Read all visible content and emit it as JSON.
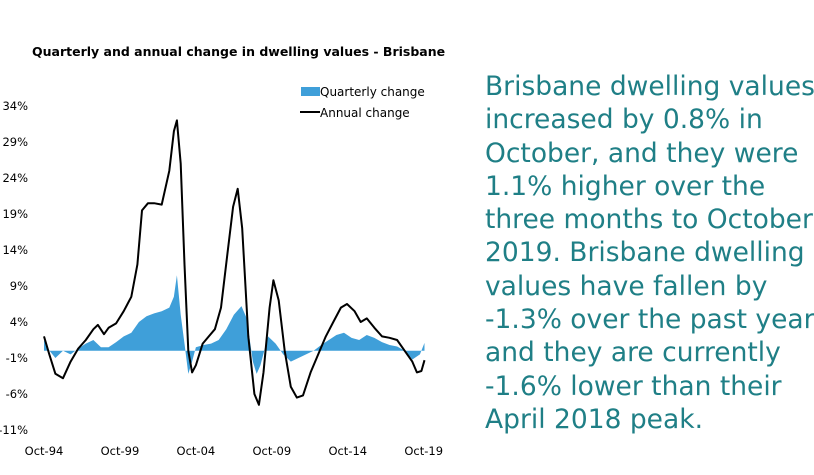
{
  "chart_data": {
    "type": "bar+line",
    "title": "Quarterly and annual change in dwelling values - Brisbane",
    "xlabel": "",
    "ylabel": "",
    "ylim": [
      -11,
      34
    ],
    "yticks": [
      "34%",
      "29%",
      "24%",
      "19%",
      "14%",
      "9%",
      "4%",
      "-1%",
      "-6%",
      "-11%"
    ],
    "ytick_values": [
      34,
      29,
      24,
      19,
      14,
      9,
      4,
      -1,
      -6,
      -11
    ],
    "xlim": [
      1994.75,
      2019.9
    ],
    "xticks": [
      "Oct-94",
      "Oct-99",
      "Oct-04",
      "Oct-09",
      "Oct-14",
      "Oct-19"
    ],
    "xtick_values": [
      1994.75,
      1999.75,
      2004.75,
      2009.75,
      2014.75,
      2019.75
    ],
    "legend_position": "top-right",
    "series": [
      {
        "name": "Quarterly change",
        "kind": "bar",
        "color": "#3f9fd9",
        "points": [
          [
            1994.75,
            1.5
          ],
          [
            1995.0,
            0.3
          ],
          [
            1995.5,
            -1.0
          ],
          [
            1996.0,
            0.0
          ],
          [
            1996.5,
            -0.5
          ],
          [
            1997.0,
            0.3
          ],
          [
            1997.5,
            1.0
          ],
          [
            1998.0,
            1.5
          ],
          [
            1998.5,
            0.5
          ],
          [
            1999.0,
            0.5
          ],
          [
            1999.5,
            1.2
          ],
          [
            2000.0,
            2.0
          ],
          [
            2000.5,
            2.5
          ],
          [
            2001.0,
            4.0
          ],
          [
            2001.5,
            4.8
          ],
          [
            2002.0,
            5.2
          ],
          [
            2002.5,
            5.5
          ],
          [
            2003.0,
            6.0
          ],
          [
            2003.3,
            7.5
          ],
          [
            2003.5,
            10.5
          ],
          [
            2003.75,
            5.0
          ],
          [
            2004.0,
            1.0
          ],
          [
            2004.25,
            -3.2
          ],
          [
            2004.5,
            -1.5
          ],
          [
            2004.75,
            0.5
          ],
          [
            2005.25,
            0.8
          ],
          [
            2005.75,
            1.0
          ],
          [
            2006.25,
            1.5
          ],
          [
            2006.75,
            3.0
          ],
          [
            2007.25,
            5.0
          ],
          [
            2007.75,
            6.2
          ],
          [
            2008.1,
            4.5
          ],
          [
            2008.5,
            -1.5
          ],
          [
            2008.75,
            -3.2
          ],
          [
            2009.0,
            -2.0
          ],
          [
            2009.5,
            2.0
          ],
          [
            2010.0,
            1.0
          ],
          [
            2010.5,
            -0.5
          ],
          [
            2011.0,
            -1.5
          ],
          [
            2011.5,
            -1.0
          ],
          [
            2012.0,
            -0.5
          ],
          [
            2012.5,
            0.0
          ],
          [
            2013.0,
            0.8
          ],
          [
            2013.5,
            1.5
          ],
          [
            2014.0,
            2.2
          ],
          [
            2014.5,
            2.5
          ],
          [
            2015.0,
            1.8
          ],
          [
            2015.5,
            1.5
          ],
          [
            2016.0,
            2.2
          ],
          [
            2016.5,
            1.8
          ],
          [
            2017.0,
            1.2
          ],
          [
            2017.5,
            0.8
          ],
          [
            2018.0,
            0.6
          ],
          [
            2018.5,
            0.0
          ],
          [
            2019.0,
            -1.2
          ],
          [
            2019.5,
            -0.5
          ],
          [
            2019.8,
            1.1
          ]
        ]
      },
      {
        "name": "Annual change",
        "kind": "line",
        "color": "#000000",
        "points": [
          [
            1994.75,
            2.0
          ],
          [
            1995.1,
            -0.5
          ],
          [
            1995.5,
            -3.2
          ],
          [
            1996.0,
            -3.8
          ],
          [
            1996.5,
            -1.5
          ],
          [
            1997.0,
            0.3
          ],
          [
            1997.5,
            1.5
          ],
          [
            1998.0,
            3.0
          ],
          [
            1998.3,
            3.6
          ],
          [
            1998.7,
            2.3
          ],
          [
            1999.0,
            3.2
          ],
          [
            1999.5,
            3.8
          ],
          [
            2000.0,
            5.5
          ],
          [
            2000.5,
            7.5
          ],
          [
            2000.9,
            12.0
          ],
          [
            2001.2,
            19.5
          ],
          [
            2001.6,
            20.5
          ],
          [
            2002.0,
            20.5
          ],
          [
            2002.5,
            20.3
          ],
          [
            2003.0,
            25.0
          ],
          [
            2003.3,
            30.5
          ],
          [
            2003.5,
            32.0
          ],
          [
            2003.75,
            26.0
          ],
          [
            2004.0,
            12.0
          ],
          [
            2004.25,
            0.0
          ],
          [
            2004.5,
            -3.0
          ],
          [
            2004.75,
            -2.0
          ],
          [
            2005.2,
            1.0
          ],
          [
            2005.6,
            2.0
          ],
          [
            2006.0,
            3.0
          ],
          [
            2006.4,
            6.0
          ],
          [
            2006.8,
            13.0
          ],
          [
            2007.2,
            20.0
          ],
          [
            2007.5,
            22.5
          ],
          [
            2007.8,
            17.0
          ],
          [
            2008.2,
            2.0
          ],
          [
            2008.6,
            -6.0
          ],
          [
            2008.9,
            -7.5
          ],
          [
            2009.2,
            -3.0
          ],
          [
            2009.6,
            6.0
          ],
          [
            2009.85,
            9.8
          ],
          [
            2010.2,
            7.0
          ],
          [
            2010.6,
            0.0
          ],
          [
            2011.0,
            -5.0
          ],
          [
            2011.4,
            -6.5
          ],
          [
            2011.8,
            -6.2
          ],
          [
            2012.3,
            -3.0
          ],
          [
            2012.8,
            -0.5
          ],
          [
            2013.3,
            2.0
          ],
          [
            2013.8,
            4.0
          ],
          [
            2014.3,
            6.0
          ],
          [
            2014.7,
            6.5
          ],
          [
            2015.2,
            5.5
          ],
          [
            2015.6,
            4.0
          ],
          [
            2016.0,
            4.5
          ],
          [
            2016.5,
            3.2
          ],
          [
            2017.0,
            2.0
          ],
          [
            2017.5,
            1.8
          ],
          [
            2018.0,
            1.5
          ],
          [
            2018.5,
            0.0
          ],
          [
            2019.0,
            -1.5
          ],
          [
            2019.3,
            -3.0
          ],
          [
            2019.6,
            -2.8
          ],
          [
            2019.8,
            -1.3
          ]
        ]
      }
    ]
  },
  "commentary": {
    "lines": [
      "Brisbane dwelling values",
      "increased by 0.8% in",
      "October, and they were",
      "1.1% higher over the",
      "three months to October",
      "2019.  Brisbane dwelling",
      "values have fallen by",
      "-1.3% over the past year",
      "and they are currently",
      "-1.6% lower than their",
      "April 2018 peak."
    ]
  }
}
